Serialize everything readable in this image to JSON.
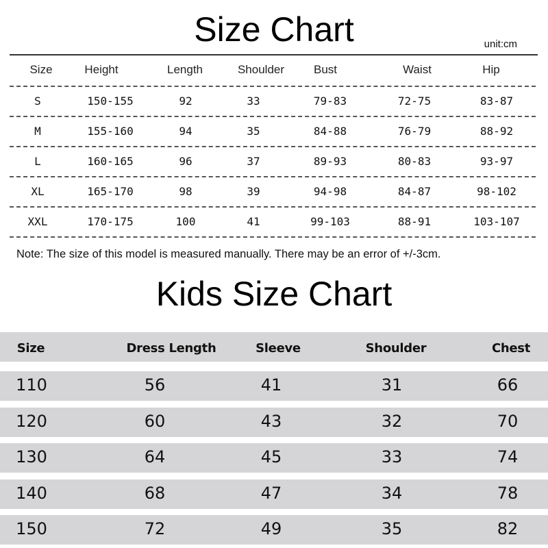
{
  "adult_chart": {
    "title": "Size Chart",
    "unit": "unit:cm",
    "headers": [
      "Size",
      "Height",
      "Length",
      "Shoulder",
      "Bust",
      "Waist",
      "Hip"
    ],
    "rows": [
      [
        "S",
        "150-155",
        "92",
        "33",
        "79-83",
        "72-75",
        "83-87"
      ],
      [
        "M",
        "155-160",
        "94",
        "35",
        "84-88",
        "76-79",
        "88-92"
      ],
      [
        "L",
        "160-165",
        "96",
        "37",
        "89-93",
        "80-83",
        "93-97"
      ],
      [
        "XL",
        "165-170",
        "98",
        "39",
        "94-98",
        "84-87",
        "98-102"
      ],
      [
        "XXL",
        "170-175",
        "100",
        "41",
        "99-103",
        "88-91",
        "103-107"
      ]
    ],
    "note": "Note: The size of this model is measured manually. There may be an error of +/-3cm."
  },
  "kids_chart": {
    "title": "Kids Size Chart",
    "headers": [
      "Size",
      "Dress Length",
      "Sleeve",
      "Shoulder",
      "Chest"
    ],
    "rows": [
      [
        "110",
        "56",
        "41",
        "31",
        "66"
      ],
      [
        "120",
        "60",
        "43",
        "32",
        "70"
      ],
      [
        "130",
        "64",
        "45",
        "33",
        "74"
      ],
      [
        "140",
        "68",
        "47",
        "34",
        "78"
      ],
      [
        "150",
        "72",
        "49",
        "35",
        "82"
      ]
    ],
    "band_color": "#d5d5d7"
  }
}
